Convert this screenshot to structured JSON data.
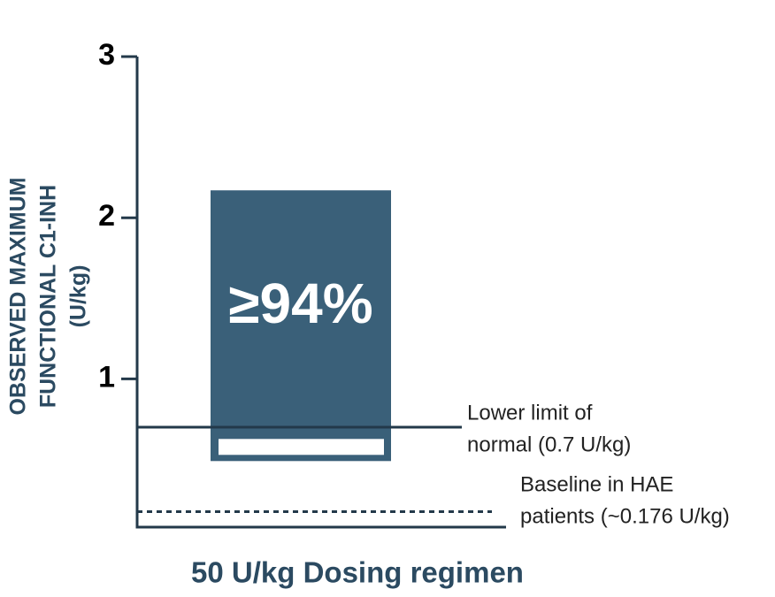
{
  "chart_data": {
    "type": "range-bar",
    "y_label": [
      "OBSERVED MAXIMUM",
      "FUNCTIONAL C1-INH",
      "(U/kg)"
    ],
    "x_label": "50 U/kg Dosing regimen",
    "ylim": [
      0.08,
      3
    ],
    "yticks": [
      1,
      2,
      3
    ],
    "axis_color": "#23394a",
    "label_color": "#2b4a61",
    "bars": [
      {
        "low": 0.49,
        "high": 2.17,
        "label": "≥94%",
        "color": "#3a6079"
      }
    ],
    "reference_lines": [
      {
        "value": 0.7,
        "style": "solid",
        "label": [
          "Lower limit of",
          "normal (0.7 U/kg)"
        ]
      },
      {
        "value": 0.176,
        "style": "dashed",
        "label": [
          "Baseline in HAE",
          "patients (~0.176 U/kg)"
        ]
      }
    ]
  }
}
